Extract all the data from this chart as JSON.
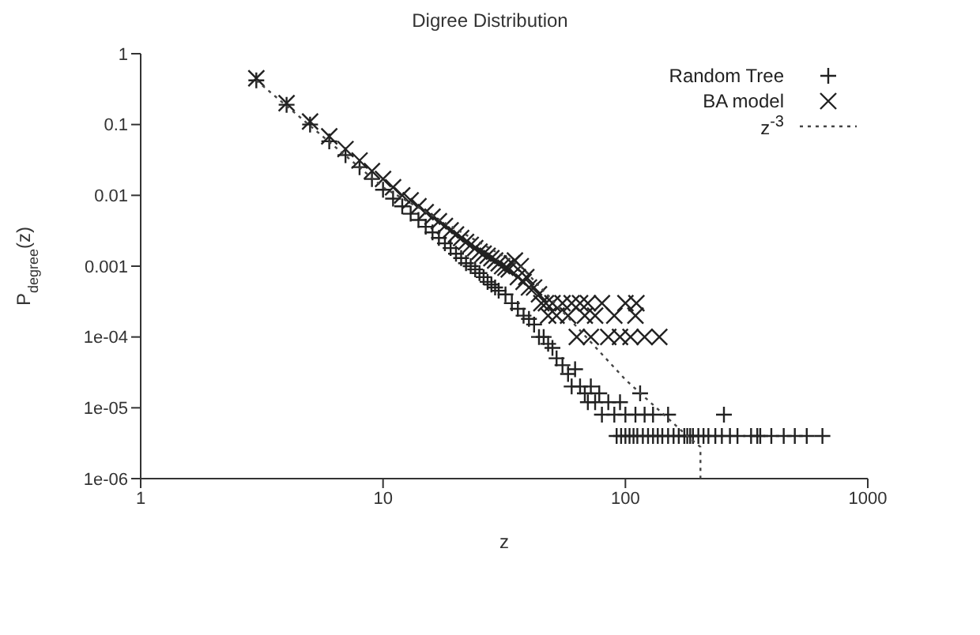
{
  "chart_data": {
    "type": "scatter",
    "title": "Digree Distribution",
    "xlabel": "z",
    "ylabel": "P$_{degree}$(z)",
    "log": "xy",
    "xlim": [
      1,
      1000
    ],
    "xticks": [
      1,
      10,
      100,
      1000
    ],
    "ylim": [
      1e-06,
      1
    ],
    "yticks": [
      1,
      0.1,
      0.01,
      0.001,
      {
        "value": 0.0001,
        "label": "1e-04"
      },
      {
        "value": 1e-05,
        "label": "1e-05"
      },
      {
        "value": 1e-06,
        "label": "1e-06"
      }
    ],
    "grid": false,
    "legend": "top right",
    "series": [
      {
        "name": "Random Tree",
        "marker": "plus",
        "color": "#222222",
        "x": [
          3,
          4,
          5,
          6,
          7,
          8,
          9,
          10,
          11,
          12,
          13,
          14,
          15,
          16,
          17,
          18,
          19,
          20,
          21,
          22,
          23,
          24,
          25,
          26,
          27,
          28,
          29,
          30,
          32,
          34,
          36,
          38,
          40,
          42,
          44,
          46,
          48,
          50,
          52,
          55,
          58,
          60,
          62,
          65,
          68,
          70,
          72,
          75,
          78,
          80,
          85,
          90,
          95,
          100,
          110,
          115,
          120,
          130,
          150,
          255,
          92,
          96,
          100,
          104,
          108,
          112,
          118,
          124,
          130,
          136,
          142,
          150,
          158,
          166,
          175,
          180,
          185,
          190,
          200,
          210,
          220,
          235,
          250,
          270,
          290,
          330,
          350,
          360,
          400,
          450,
          500,
          560,
          650
        ],
        "values": [
          0.42,
          0.19,
          0.1,
          0.058,
          0.037,
          0.025,
          0.017,
          0.012,
          0.009,
          0.007,
          0.0055,
          0.0045,
          0.0036,
          0.003,
          0.0025,
          0.0021,
          0.0018,
          0.0015,
          0.0013,
          0.0011,
          0.001,
          0.0009,
          0.0008,
          0.0007,
          0.0006,
          0.00055,
          0.0005,
          0.00045,
          0.0004,
          0.0003,
          0.00025,
          0.0002,
          0.00018,
          0.00015,
          0.0001,
          0.0001,
          8e-05,
          7e-05,
          5e-05,
          4e-05,
          3e-05,
          2e-05,
          3.5e-05,
          2e-05,
          1.6e-05,
          1.2e-05,
          2e-05,
          1.2e-05,
          1.6e-05,
          8e-06,
          1.2e-05,
          8e-06,
          1.2e-05,
          8e-06,
          8e-06,
          1.6e-05,
          8e-06,
          8e-06,
          8e-06,
          8e-06,
          4e-06,
          4e-06,
          4e-06,
          4e-06,
          4e-06,
          4e-06,
          4e-06,
          4e-06,
          4e-06,
          4e-06,
          4e-06,
          4e-06,
          4e-06,
          4e-06,
          4e-06,
          4e-06,
          4e-06,
          4e-06,
          4e-06,
          4e-06,
          4e-06,
          4e-06,
          4e-06,
          4e-06,
          4e-06,
          4e-06,
          4e-06,
          4e-06,
          4e-06,
          4e-06,
          4e-06,
          4e-06,
          4e-06
        ]
      },
      {
        "name": "BA model",
        "marker": "cross",
        "color": "#222222",
        "x": [
          3,
          4,
          5,
          6,
          7,
          8,
          9,
          10,
          11,
          12,
          13,
          14,
          15,
          16,
          17,
          18,
          19,
          20,
          21,
          22,
          23,
          24,
          25,
          26,
          27,
          28,
          29,
          30,
          31,
          32,
          33,
          34,
          35,
          36,
          37,
          38,
          39,
          40,
          42,
          44,
          45,
          47,
          48,
          50,
          52,
          55,
          58,
          60,
          63,
          65,
          68,
          70,
          72,
          75,
          80,
          85,
          90,
          95,
          100,
          105,
          110,
          111,
          120,
          138
        ],
        "values": [
          0.45,
          0.2,
          0.11,
          0.068,
          0.045,
          0.031,
          0.022,
          0.017,
          0.013,
          0.01,
          0.0085,
          0.007,
          0.0058,
          0.005,
          0.0043,
          0.0037,
          0.0032,
          0.0028,
          0.0025,
          0.0022,
          0.002,
          0.0018,
          0.0016,
          0.0015,
          0.0014,
          0.0013,
          0.0012,
          0.0011,
          0.001,
          0.00095,
          0.0009,
          0.0011,
          0.0012,
          0.0007,
          0.001,
          0.0006,
          0.0007,
          0.0005,
          0.0005,
          0.0004,
          0.0003,
          0.0003,
          0.0002,
          0.0003,
          0.0002,
          0.0003,
          0.0002,
          0.0003,
          0.0001,
          0.0003,
          0.0002,
          0.0003,
          0.0001,
          0.0002,
          0.0003,
          0.0001,
          0.0002,
          0.0001,
          0.0003,
          0.0001,
          0.0002,
          0.0003,
          0.0001,
          0.0001
        ]
      },
      {
        "name": "z$^{-3}$",
        "type": "line",
        "marker": "none",
        "line_style": "dotted",
        "color": "#444444",
        "x": [
          3,
          10,
          37,
          100,
          180,
          204,
          204
        ],
        "values": [
          0.42,
          0.013,
          0.001,
          2.5e-05,
          4e-06,
          2.8e-06,
          1e-06
        ]
      }
    ]
  }
}
